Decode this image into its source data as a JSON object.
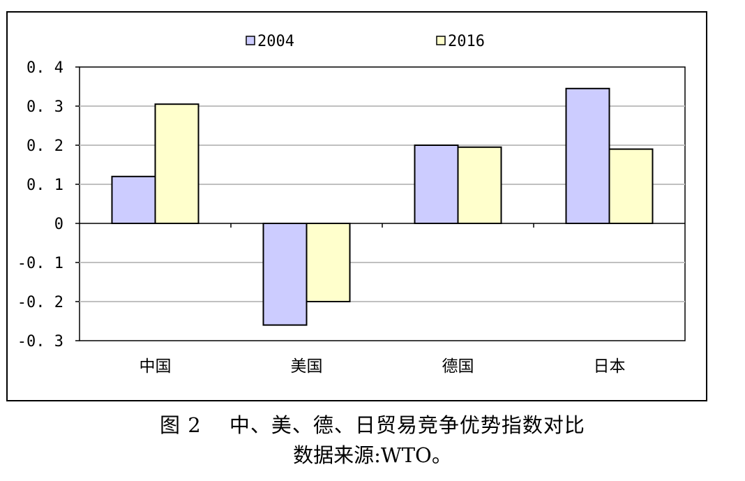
{
  "chart_data": {
    "type": "bar",
    "categories": [
      "中国",
      "美国",
      "德国",
      "日本"
    ],
    "series": [
      {
        "name": "2004",
        "values": [
          0.12,
          -0.26,
          0.2,
          0.345
        ],
        "color": "#ccccff"
      },
      {
        "name": "2016",
        "values": [
          0.305,
          -0.2,
          0.195,
          0.19
        ],
        "color": "#ffffcc"
      }
    ],
    "ylim": [
      -0.3,
      0.4
    ],
    "yticks": [
      {
        "value": 0.4,
        "label": "0. 4"
      },
      {
        "value": 0.3,
        "label": "0. 3"
      },
      {
        "value": 0.2,
        "label": "0. 2"
      },
      {
        "value": 0.1,
        "label": "0. 1"
      },
      {
        "value": 0,
        "label": "0"
      },
      {
        "value": -0.1,
        "label": "-0. 1"
      },
      {
        "value": -0.2,
        "label": "-0. 2"
      },
      {
        "value": -0.3,
        "label": "-0. 3"
      }
    ],
    "grid": true,
    "legend_position": "top-center",
    "plot_background": "#ffffff",
    "gridline_color": "#c0c0c0"
  },
  "caption": {
    "title": "图 2　 中、美、德、日贸易竞争优势指数对比",
    "source": "数据来源:WTO。"
  }
}
